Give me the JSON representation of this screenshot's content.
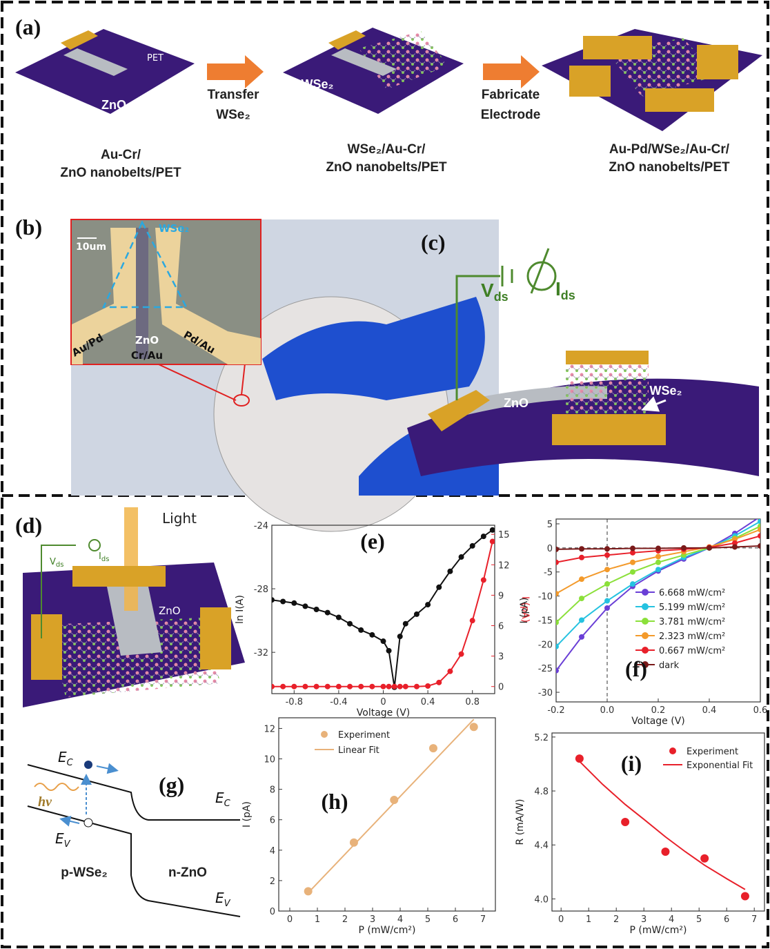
{
  "panels": {
    "a": {
      "label": "(a)",
      "pet": "PET",
      "zno": "ZnO",
      "step1": "Transfer",
      "step1b": "WSe₂",
      "step2": "Fabricate",
      "step2b": "Electrode",
      "wse2_mid": "WSe₂",
      "wse2_right": "WSe₂",
      "caption1": [
        "Au-Cr/",
        "ZnO nanobelts/PET"
      ],
      "caption2": [
        "WSe₂/Au-Cr/",
        "ZnO nanobelts/PET"
      ],
      "caption3": [
        "Au-Pd/WSe₂/Au-Cr/",
        "ZnO nanobelts/PET"
      ]
    },
    "b": {
      "label": "(b)",
      "scale": "10um",
      "wse2": "WSe₂",
      "left": "Au/Pd",
      "zno": "ZnO",
      "bottom": "Cr/Au",
      "right": "Pd/Au"
    },
    "c": {
      "label": "(c)",
      "v": {
        "main": "V",
        "sub": "ds"
      },
      "i": {
        "main": "I",
        "sub": "ds"
      },
      "zno": "ZnO",
      "wse2": "WSe₂"
    },
    "d": {
      "label": "(d)",
      "light": "Light",
      "v": {
        "main": "V",
        "sub": "ds"
      },
      "i": {
        "main": "I",
        "sub": "ds"
      },
      "zno": "ZnO",
      "wse2": "WSe₂"
    },
    "g": {
      "label": "(g)",
      "ec_left": {
        "main": "E",
        "sub": "C"
      },
      "ec_right": {
        "main": "E",
        "sub": "C"
      },
      "ev_left": {
        "main": "E",
        "sub": "V"
      },
      "ev_right": {
        "main": "E",
        "sub": "V"
      },
      "hv": "hν",
      "p": "p-WSe₂",
      "n": "n-ZnO"
    }
  },
  "chart_data": [
    {
      "type": "line",
      "panel_label": "(e)",
      "xlabel": "Voltage (V)",
      "ylabel": "ln I(A)",
      "y2label": "I (pA)",
      "x": [
        -1.0,
        -0.9,
        -0.8,
        -0.7,
        -0.6,
        -0.5,
        -0.4,
        -0.3,
        -0.2,
        -0.1,
        0.0,
        0.05,
        0.1,
        0.15,
        0.2,
        0.3,
        0.4,
        0.5,
        0.6,
        0.7,
        0.8,
        0.9,
        0.98
      ],
      "xlim": [
        -1,
        1
      ],
      "xticks": [
        -0.8,
        -0.4,
        0.0,
        0.4,
        0.8
      ],
      "ylim": [
        -34.6,
        -24
      ],
      "yticks": [
        -24,
        -28,
        -32
      ],
      "y2lim": [
        -0.7,
        15.9
      ],
      "y2ticks": [
        0,
        3,
        6,
        9,
        12,
        15
      ],
      "mode": "line+markers",
      "series": [
        {
          "color": "#111111",
          "values": [
            -28.7,
            -28.8,
            -28.9,
            -29.1,
            -29.3,
            -29.5,
            -29.8,
            -30.2,
            -30.6,
            -30.9,
            -31.3,
            -31.9,
            -34.2,
            -31.0,
            -30.2,
            -29.6,
            -29.0,
            -27.9,
            -26.9,
            -26.0,
            -25.3,
            -24.7,
            -24.3
          ]
        },
        {
          "color": "#e8202a",
          "axis": "y2",
          "values": [
            0,
            0,
            0,
            0,
            0,
            0,
            0,
            0,
            0,
            0,
            0,
            0,
            0,
            0,
            0,
            0,
            0.05,
            0.4,
            1.5,
            3.2,
            6.5,
            10.5,
            14.3
          ]
        }
      ]
    },
    {
      "type": "line",
      "panel_label": "(f)",
      "xlabel": "Voltage (V)",
      "ylabel": "I (pA)",
      "x": [
        -0.2,
        -0.1,
        0.0,
        0.1,
        0.2,
        0.3,
        0.4,
        0.5,
        0.6
      ],
      "xlim": [
        -0.2,
        0.6
      ],
      "xticks": [
        {
          "value": -0.2,
          "label": "-0.2"
        },
        {
          "value": 0,
          "label": "0.0"
        },
        0.2,
        0.4,
        0.6
      ],
      "ylim": [
        -32,
        6
      ],
      "yticks": [
        5,
        0,
        -5,
        -10,
        -15,
        -20,
        -25,
        -30
      ],
      "mode": "line+markers",
      "series": [
        {
          "name": "6.668 mW/cm²",
          "color": "#6a3fd6",
          "values": [
            -25.5,
            -18.5,
            -12.5,
            -8,
            -4.8,
            -2.3,
            0,
            3,
            6.5
          ]
        },
        {
          "name": "5.199 mW/cm²",
          "color": "#25c2e0",
          "values": [
            -20.5,
            -15,
            -11,
            -7.5,
            -4.5,
            -2,
            0,
            2.5,
            5.5
          ]
        },
        {
          "name": "3.781 mW/cm²",
          "color": "#8be03a",
          "values": [
            -15.5,
            -10.5,
            -7.5,
            -5,
            -3,
            -1.5,
            0,
            2,
            4.5
          ]
        },
        {
          "name": "2.323 mW/cm²",
          "color": "#f39a2b",
          "values": [
            -9.5,
            -6.5,
            -4.5,
            -3,
            -1.8,
            -0.8,
            0.2,
            1.8,
            3.8
          ]
        },
        {
          "name": "0.667 mW/cm²",
          "color": "#e8202a",
          "values": [
            -3,
            -2,
            -1.5,
            -1,
            -0.6,
            -0.3,
            0.1,
            1,
            2.5
          ]
        },
        {
          "name": "dark",
          "color": "#7a1a1a",
          "values": [
            -0.3,
            -0.2,
            -0.2,
            -0.1,
            -0.1,
            0,
            0,
            0.2,
            0.4
          ]
        }
      ]
    },
    {
      "type": "scatter",
      "panel_label": "(h)",
      "xlabel": "P (mW/cm²)",
      "ylabel": "I (pA)",
      "xlim": [
        -0.4,
        7.45
      ],
      "xticks": [
        0,
        1,
        2,
        3,
        4,
        5,
        6,
        7
      ],
      "ylim": [
        0,
        12.7
      ],
      "yticks": [
        0,
        2,
        4,
        6,
        8,
        10,
        12
      ],
      "series": [
        {
          "name": "Experiment",
          "color": "#e8b27a",
          "mode": "markers",
          "x": [
            0.667,
            2.323,
            3.781,
            5.199,
            6.668
          ],
          "values": [
            1.3,
            4.5,
            7.3,
            10.7,
            12.1
          ]
        },
        {
          "name": "Linear Fit",
          "color": "#e8b27a",
          "mode": "line",
          "x": [
            0.667,
            6.668
          ],
          "values": [
            1.2,
            12.6
          ]
        }
      ]
    },
    {
      "type": "scatter",
      "panel_label": "(i)",
      "xlabel": "P (mW/cm²)",
      "ylabel": "R (mA/W)",
      "xlim": [
        -0.33,
        7.37
      ],
      "xticks": [
        0,
        1,
        2,
        3,
        4,
        5,
        6,
        7
      ],
      "ylim": [
        3.91,
        5.23
      ],
      "yticks": [
        {
          "value": 4,
          "label": "4.0"
        },
        4.4,
        4.8,
        5.2
      ],
      "series": [
        {
          "name": "Experiment",
          "color": "#e8202a",
          "mode": "markers",
          "x": [
            0.667,
            2.323,
            3.781,
            5.199,
            6.668
          ],
          "values": [
            5.04,
            4.57,
            4.35,
            4.3,
            4.02
          ]
        },
        {
          "name": "Exponential Fit",
          "color": "#e8202a",
          "mode": "line",
          "x": [
            0.667,
            1.5,
            2.323,
            3.0,
            3.781,
            4.5,
            5.199,
            6.0,
            6.668
          ],
          "values": [
            5.02,
            4.85,
            4.7,
            4.59,
            4.46,
            4.35,
            4.25,
            4.15,
            4.07
          ]
        }
      ]
    }
  ]
}
